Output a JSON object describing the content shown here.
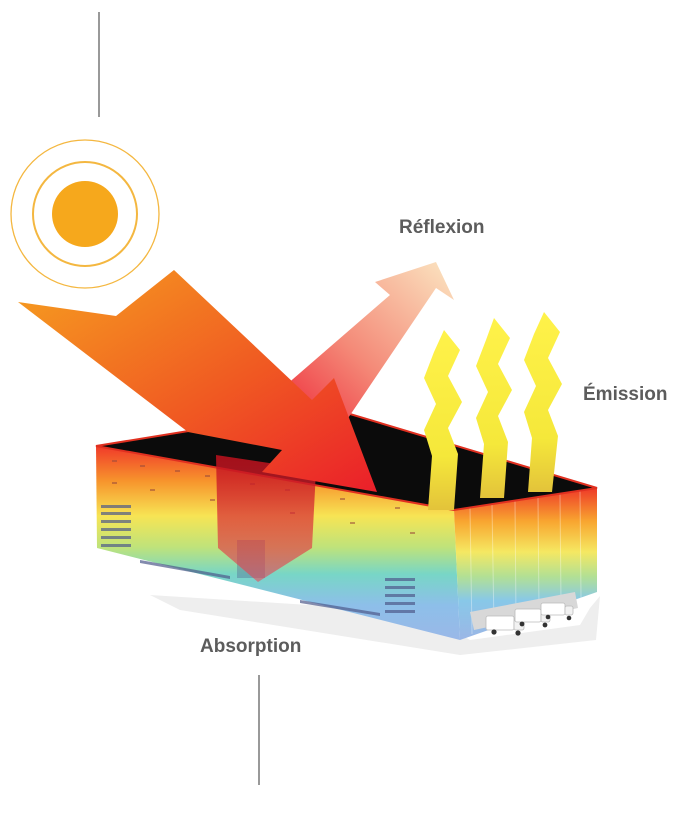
{
  "labels": {
    "reflexion": "Réflexion",
    "emission": "Émission",
    "absorption": "Absorption"
  },
  "colors": {
    "sun": "#f6a81c",
    "sun_rings": "#f4b740",
    "lines": "#555555",
    "label_text": "#5c5c5c",
    "roof": "#0b0b0b",
    "emission_waves": "#f4ea3a",
    "incoming_arrow_start": "#f6a020",
    "incoming_arrow_end": "#ea1f2a",
    "reflected_arrow_start": "#ef2a3a",
    "reflected_arrow_end": "#fbe2b8"
  },
  "icons": {
    "sun": "sun-icon",
    "trucks": "truck-icon"
  }
}
